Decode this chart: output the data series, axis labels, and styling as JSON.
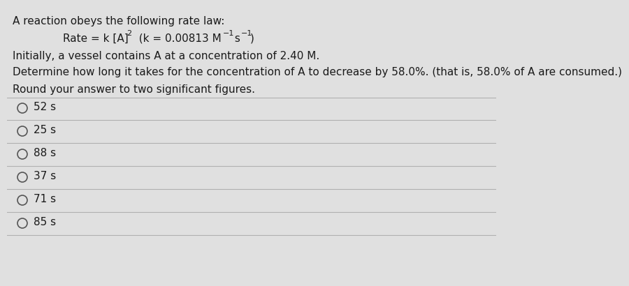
{
  "bg_color": "#e0e0e0",
  "panel_color": "#ebebeb",
  "text_color": "#1a1a1a",
  "line_color": "#b0b0b0",
  "title_line": "A reaction obeys the following rate law:",
  "line2": "Initially, a vessel contains A at a concentration of 2.40 M.",
  "line3": "Determine how long it takes for the concentration of A to decrease by 58.0%. (that is, 58.0% of A are consumed.)",
  "line4": "Round your answer to two significant figures.",
  "choices": [
    "52 s",
    "25 s",
    "88 s",
    "37 s",
    "71 s",
    "85 s"
  ],
  "font_size_body": 11.0,
  "font_size_choice": 11.0,
  "font_size_super": 8.0
}
